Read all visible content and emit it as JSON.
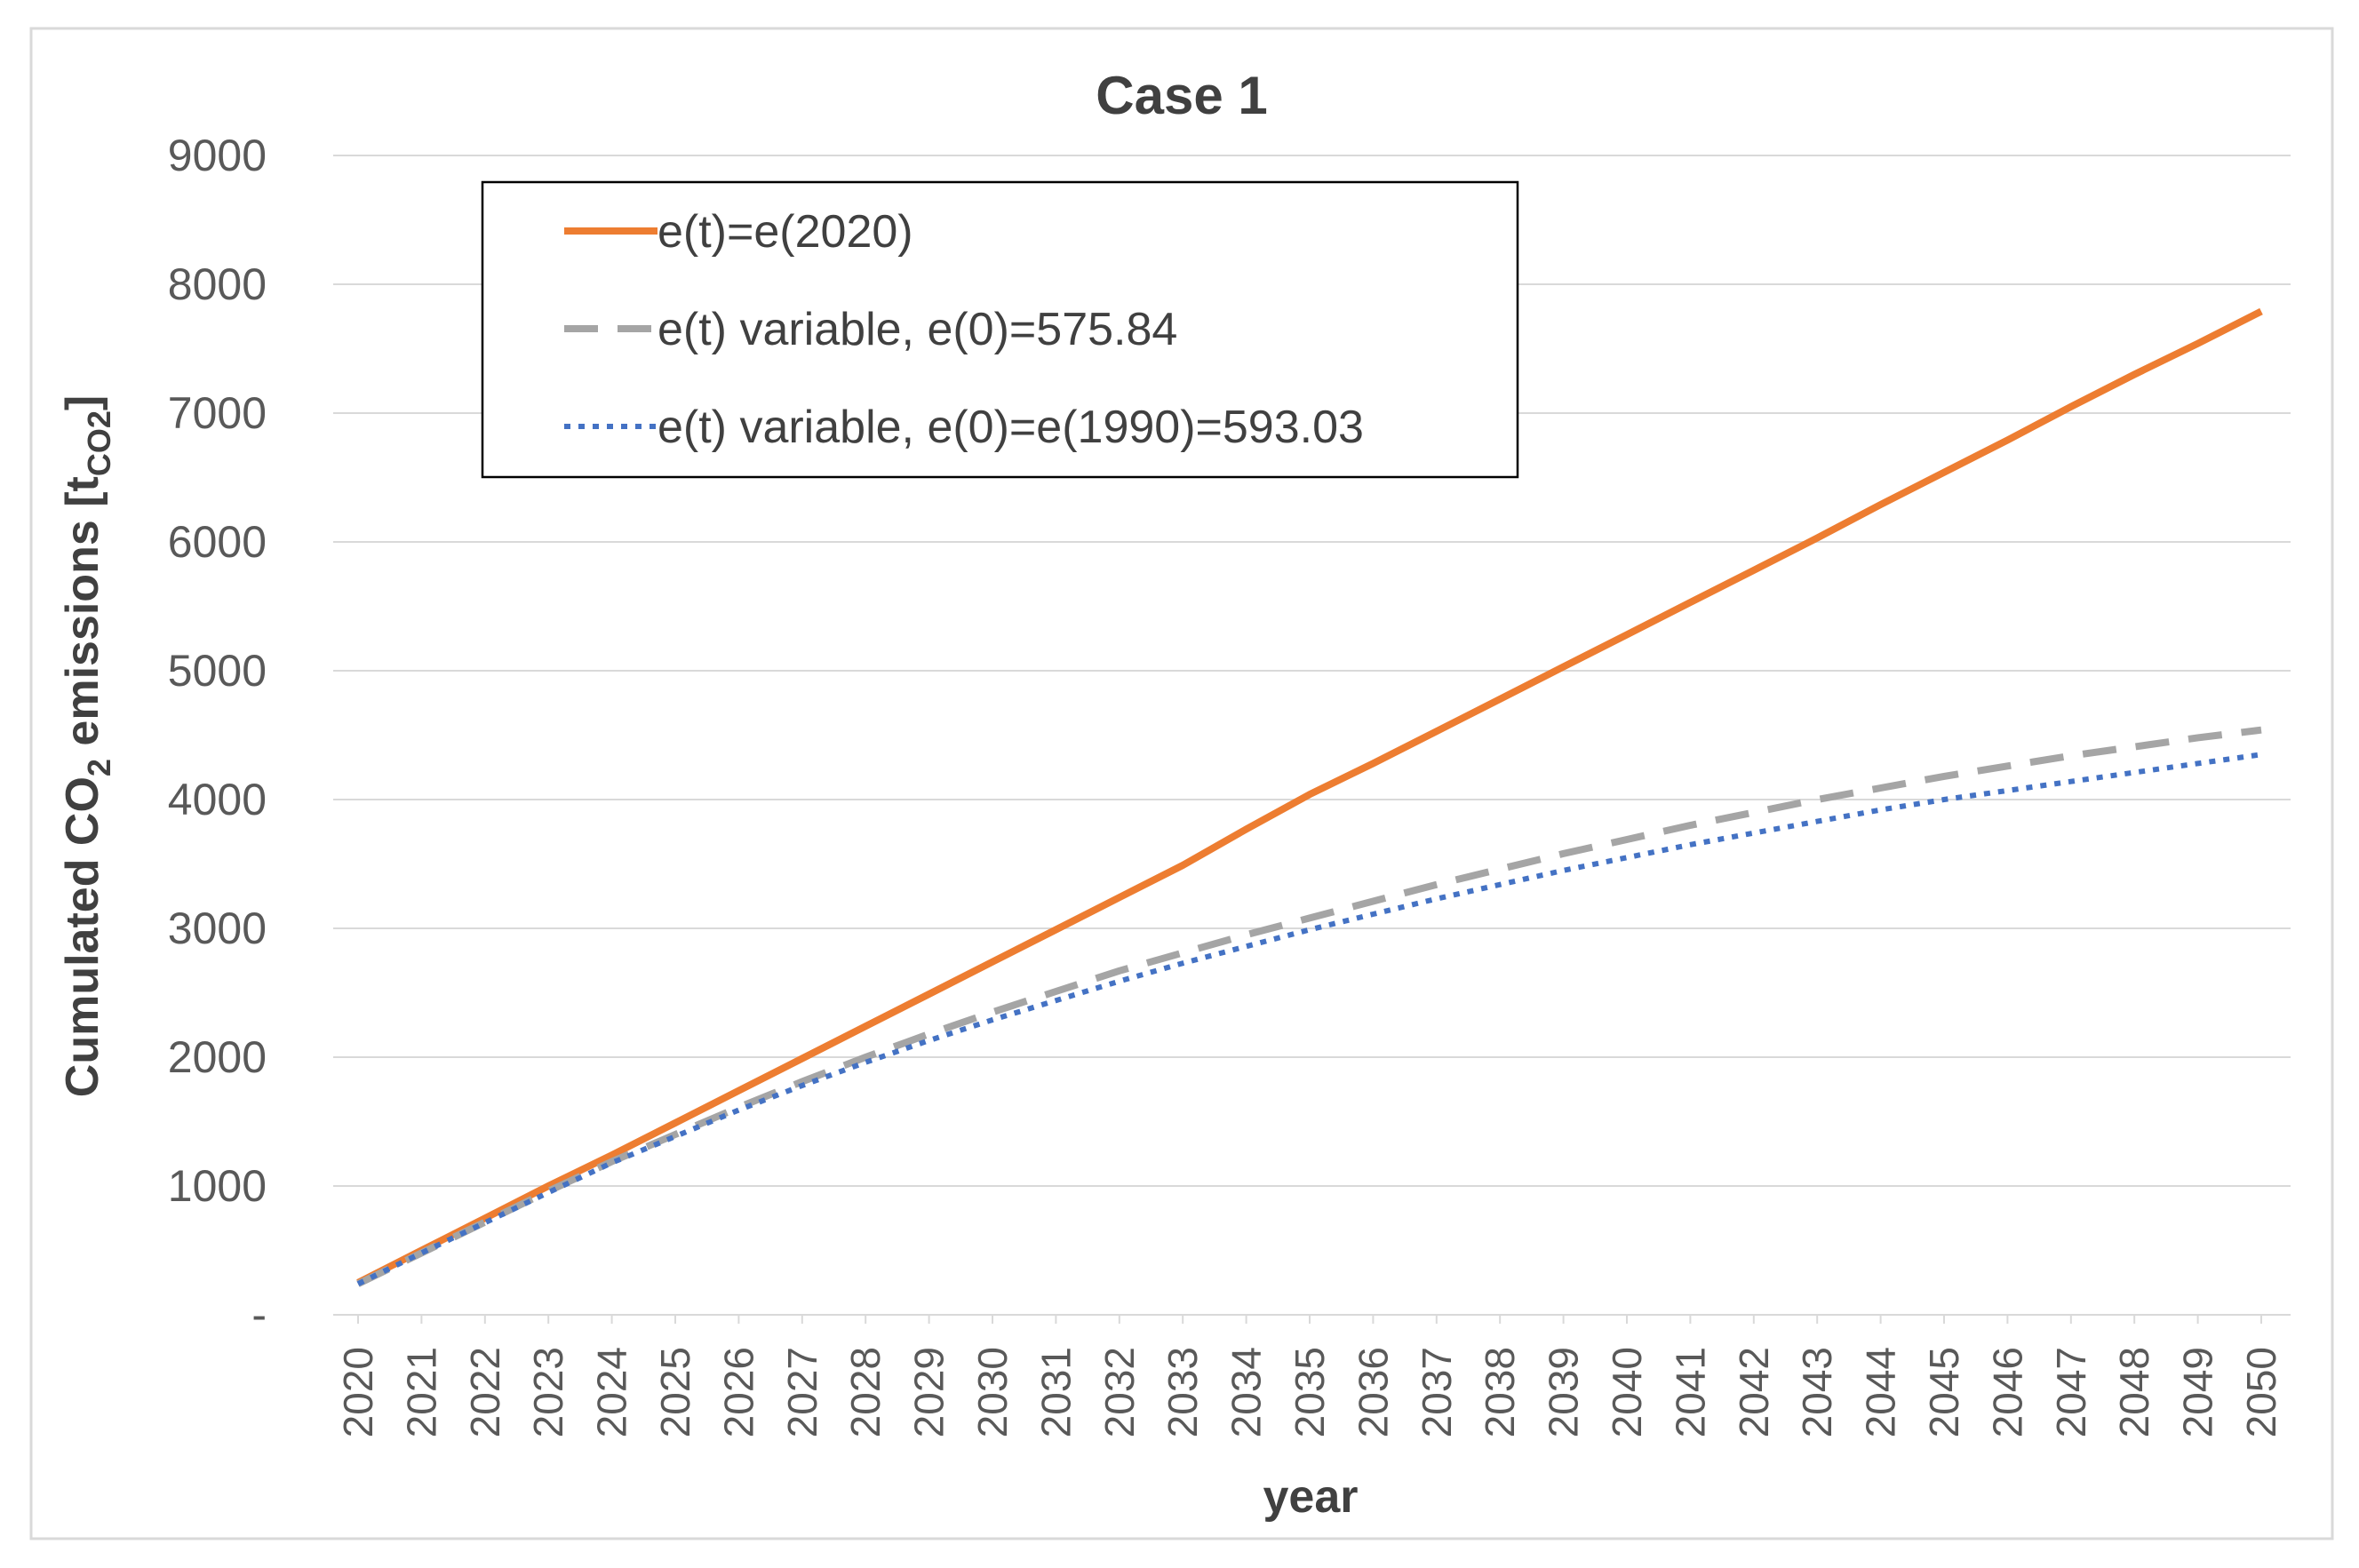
{
  "colors": {
    "orange": "#ED7D31",
    "gray": "#A5A5A5",
    "blue": "#4472C4"
  },
  "chart_data": {
    "type": "line",
    "title": "Case 1",
    "xlabel": "year",
    "ylabel_parts": {
      "prefix": "Cumulated CO",
      "sub1": "2",
      "middle": " emissions [t",
      "sub2": "CO2",
      "suffix": "]"
    },
    "ylim": [
      0,
      9000
    ],
    "y_ticks": [
      {
        "value": 0,
        "label": "-"
      },
      {
        "value": 1000,
        "label": "1000"
      },
      {
        "value": 2000,
        "label": "2000"
      },
      {
        "value": 3000,
        "label": "3000"
      },
      {
        "value": 4000,
        "label": "4000"
      },
      {
        "value": 5000,
        "label": "5000"
      },
      {
        "value": 6000,
        "label": "6000"
      },
      {
        "value": 7000,
        "label": "7000"
      },
      {
        "value": 8000,
        "label": "8000"
      },
      {
        "value": 9000,
        "label": "9000"
      }
    ],
    "grid": true,
    "legend_position": "top-left",
    "categories": [
      "2020",
      "2021",
      "2022",
      "2023",
      "2024",
      "2025",
      "2026",
      "2027",
      "2028",
      "2029",
      "2030",
      "2031",
      "2032",
      "2033",
      "2034",
      "2035",
      "2036",
      "2037",
      "2038",
      "2039",
      "2040",
      "2041",
      "2042",
      "2043",
      "2044",
      "2045",
      "2046",
      "2047",
      "2048",
      "2049",
      "2050"
    ],
    "series": [
      {
        "name": "e(t)=e(2020)",
        "style": "solid",
        "color": "#ED7D31",
        "values": [
          250,
          500,
          750,
          1000,
          1240,
          1490,
          1740,
          1990,
          2240,
          2490,
          2740,
          2990,
          3240,
          3490,
          3770,
          4040,
          4280,
          4530,
          4780,
          5030,
          5280,
          5530,
          5780,
          6030,
          6290,
          6540,
          6790,
          7050,
          7300,
          7540,
          7790
        ]
      },
      {
        "name": "e(t) variable, e(0)=575.84",
        "style": "dashed",
        "color": "#A5A5A5",
        "values": [
          240,
          480,
          720,
          960,
          1190,
          1400,
          1610,
          1810,
          2000,
          2180,
          2350,
          2510,
          2670,
          2810,
          2950,
          3080,
          3210,
          3340,
          3460,
          3580,
          3690,
          3800,
          3900,
          4000,
          4090,
          4180,
          4260,
          4340,
          4410,
          4480,
          4540
        ]
      },
      {
        "name": "e(t) variable, e(0)=e(1990)=593.03",
        "style": "dotted",
        "color": "#4472C4",
        "values": [
          240,
          480,
          715,
          950,
          1180,
          1385,
          1590,
          1780,
          1960,
          2130,
          2290,
          2440,
          2590,
          2730,
          2860,
          2990,
          3110,
          3230,
          3340,
          3450,
          3550,
          3650,
          3740,
          3830,
          3920,
          4000,
          4070,
          4140,
          4210,
          4280,
          4350
        ]
      }
    ]
  }
}
